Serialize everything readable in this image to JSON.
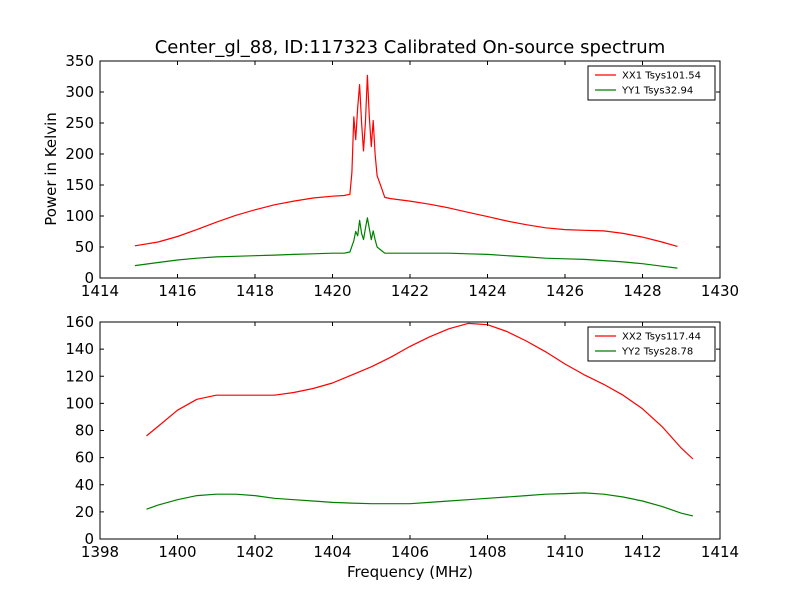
{
  "figure": {
    "title": "Center_gl_88, ID:117323 Calibrated On-source spectrum",
    "ylabel": "Power in Kelvin",
    "xlabel": "Frequency (MHz)"
  },
  "chart_data": [
    {
      "type": "line",
      "xlim": [
        1414,
        1430
      ],
      "ylim": [
        0,
        350
      ],
      "xticks": [
        1414,
        1416,
        1418,
        1420,
        1422,
        1424,
        1426,
        1428,
        1430
      ],
      "yticks": [
        0,
        50,
        100,
        150,
        200,
        250,
        300,
        350
      ],
      "legend_position": "top-right",
      "grid": false,
      "series": [
        {
          "name": "XX1 Tsys101.54",
          "color": "#ff0000",
          "points": [
            [
              1414.9,
              52
            ],
            [
              1415.5,
              58
            ],
            [
              1416,
              67
            ],
            [
              1416.5,
              78
            ],
            [
              1417,
              90
            ],
            [
              1417.5,
              101
            ],
            [
              1418,
              110
            ],
            [
              1418.5,
              118
            ],
            [
              1419,
              124
            ],
            [
              1419.5,
              129
            ],
            [
              1420,
              132
            ],
            [
              1420.3,
              133
            ],
            [
              1420.45,
              135
            ],
            [
              1420.5,
              170
            ],
            [
              1420.55,
              260
            ],
            [
              1420.6,
              223
            ],
            [
              1420.65,
              275
            ],
            [
              1420.7,
              312
            ],
            [
              1420.75,
              250
            ],
            [
              1420.8,
              205
            ],
            [
              1420.85,
              250
            ],
            [
              1420.9,
              327
            ],
            [
              1420.95,
              260
            ],
            [
              1421.0,
              212
            ],
            [
              1421.05,
              254
            ],
            [
              1421.1,
              200
            ],
            [
              1421.15,
              165
            ],
            [
              1421.25,
              148
            ],
            [
              1421.35,
              130
            ],
            [
              1421.5,
              128
            ],
            [
              1422,
              124
            ],
            [
              1422.5,
              119
            ],
            [
              1423,
              113
            ],
            [
              1423.5,
              106
            ],
            [
              1424,
              99
            ],
            [
              1424.5,
              92
            ],
            [
              1425,
              86
            ],
            [
              1425.5,
              81
            ],
            [
              1426,
              78
            ],
            [
              1426.5,
              77
            ],
            [
              1427,
              76
            ],
            [
              1427.5,
              72
            ],
            [
              1428,
              66
            ],
            [
              1428.5,
              58
            ],
            [
              1428.9,
              51
            ]
          ]
        },
        {
          "name": "YY1 Tsys32.94",
          "color": "#008000",
          "points": [
            [
              1414.9,
              20
            ],
            [
              1415.5,
              25
            ],
            [
              1416,
              29
            ],
            [
              1416.5,
              32
            ],
            [
              1417,
              34
            ],
            [
              1417.5,
              35
            ],
            [
              1418,
              36
            ],
            [
              1418.5,
              37
            ],
            [
              1419,
              38
            ],
            [
              1419.5,
              39
            ],
            [
              1420,
              40
            ],
            [
              1420.3,
              40
            ],
            [
              1420.45,
              42
            ],
            [
              1420.55,
              60
            ],
            [
              1420.6,
              75
            ],
            [
              1420.65,
              68
            ],
            [
              1420.7,
              93
            ],
            [
              1420.75,
              72
            ],
            [
              1420.8,
              62
            ],
            [
              1420.85,
              80
            ],
            [
              1420.9,
              97
            ],
            [
              1420.95,
              80
            ],
            [
              1421.0,
              62
            ],
            [
              1421.05,
              76
            ],
            [
              1421.1,
              62
            ],
            [
              1421.15,
              50
            ],
            [
              1421.25,
              45
            ],
            [
              1421.35,
              40
            ],
            [
              1421.5,
              40
            ],
            [
              1422,
              40
            ],
            [
              1422.5,
              40
            ],
            [
              1423,
              40
            ],
            [
              1423.5,
              39
            ],
            [
              1424,
              38
            ],
            [
              1424.5,
              36
            ],
            [
              1425,
              34
            ],
            [
              1425.5,
              32
            ],
            [
              1426,
              31
            ],
            [
              1426.5,
              30
            ],
            [
              1427,
              28
            ],
            [
              1427.5,
              26
            ],
            [
              1428,
              23
            ],
            [
              1428.5,
              19
            ],
            [
              1428.9,
              16
            ]
          ]
        }
      ]
    },
    {
      "type": "line",
      "xlim": [
        1398,
        1414
      ],
      "ylim": [
        0,
        160
      ],
      "xticks": [
        1398,
        1400,
        1402,
        1404,
        1406,
        1408,
        1410,
        1412,
        1414
      ],
      "yticks": [
        0,
        20,
        40,
        60,
        80,
        100,
        120,
        140,
        160
      ],
      "legend_position": "top-right",
      "grid": false,
      "series": [
        {
          "name": "XX2 Tsys117.44",
          "color": "#ff0000",
          "points": [
            [
              1399.2,
              76
            ],
            [
              1399.5,
              83
            ],
            [
              1400,
              95
            ],
            [
              1400.5,
              103
            ],
            [
              1401,
              106
            ],
            [
              1401.5,
              106
            ],
            [
              1402,
              106
            ],
            [
              1402.5,
              106
            ],
            [
              1403,
              108
            ],
            [
              1403.5,
              111
            ],
            [
              1404,
              115
            ],
            [
              1404.5,
              121
            ],
            [
              1405,
              127
            ],
            [
              1405.5,
              134
            ],
            [
              1406,
              142
            ],
            [
              1406.5,
              149
            ],
            [
              1407,
              155
            ],
            [
              1407.5,
              159
            ],
            [
              1408,
              158
            ],
            [
              1408.5,
              153
            ],
            [
              1409,
              146
            ],
            [
              1409.5,
              138
            ],
            [
              1410,
              129
            ],
            [
              1410.5,
              121
            ],
            [
              1411,
              114
            ],
            [
              1411.5,
              106
            ],
            [
              1412,
              96
            ],
            [
              1412.5,
              83
            ],
            [
              1413,
              67
            ],
            [
              1413.3,
              59
            ]
          ]
        },
        {
          "name": "YY2 Tsys28.78",
          "color": "#008000",
          "points": [
            [
              1399.2,
              22
            ],
            [
              1399.5,
              25
            ],
            [
              1400,
              29
            ],
            [
              1400.5,
              32
            ],
            [
              1401,
              33
            ],
            [
              1401.5,
              33
            ],
            [
              1402,
              32
            ],
            [
              1402.5,
              30
            ],
            [
              1403,
              29
            ],
            [
              1403.5,
              28
            ],
            [
              1404,
              27
            ],
            [
              1404.5,
              26.5
            ],
            [
              1405,
              26
            ],
            [
              1405.5,
              26
            ],
            [
              1406,
              26
            ],
            [
              1406.5,
              27
            ],
            [
              1407,
              28
            ],
            [
              1407.5,
              29
            ],
            [
              1408,
              30
            ],
            [
              1408.5,
              31
            ],
            [
              1409,
              32
            ],
            [
              1409.5,
              33
            ],
            [
              1410,
              33.5
            ],
            [
              1410.5,
              34
            ],
            [
              1411,
              33
            ],
            [
              1411.5,
              31
            ],
            [
              1412,
              28
            ],
            [
              1412.5,
              24
            ],
            [
              1413,
              19
            ],
            [
              1413.3,
              17
            ]
          ]
        }
      ]
    }
  ]
}
